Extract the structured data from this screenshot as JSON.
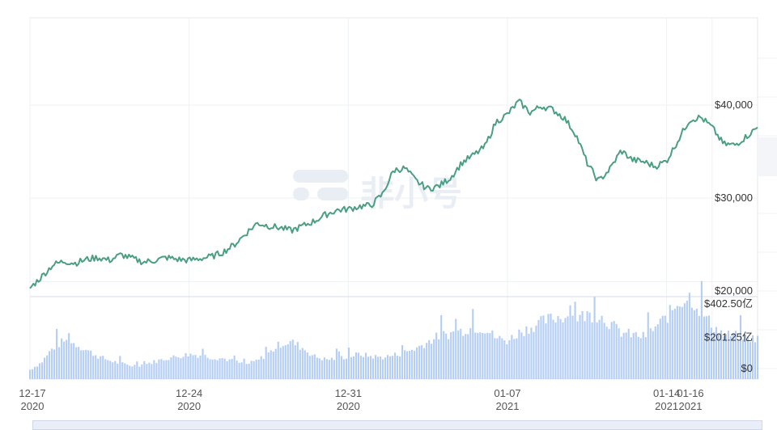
{
  "chart_data": {
    "type": "line",
    "x_ticks": [
      {
        "day": "12-17",
        "year": "2020",
        "t": 0
      },
      {
        "day": "12-24",
        "year": "2020",
        "t": 7
      },
      {
        "day": "12-31",
        "year": "2020",
        "t": 14
      },
      {
        "day": "01-07",
        "year": "2021",
        "t": 21
      },
      {
        "day": "01-14",
        "year": "2021",
        "t": 28
      },
      {
        "day": "01-16",
        "year": "2021",
        "t": 30
      }
    ],
    "price": {
      "y_ticks": [
        "$20,000",
        "$30,000",
        "$40,000"
      ],
      "y_tick_values": [
        20000,
        30000,
        40000
      ],
      "ylim": [
        20000,
        42000
      ],
      "color": "#4a9e84",
      "points": [
        [
          0,
          20300
        ],
        [
          0.5,
          21500
        ],
        [
          1,
          22800
        ],
        [
          1.5,
          23200
        ],
        [
          2,
          23000
        ],
        [
          2.5,
          23400
        ],
        [
          3,
          23600
        ],
        [
          3.5,
          23300
        ],
        [
          4,
          23900
        ],
        [
          4.5,
          23500
        ],
        [
          5,
          23100
        ],
        [
          5.5,
          23300
        ],
        [
          6,
          23600
        ],
        [
          6.5,
          23400
        ],
        [
          7,
          23300
        ],
        [
          7.5,
          23500
        ],
        [
          8,
          23700
        ],
        [
          8.5,
          24200
        ],
        [
          9,
          25000
        ],
        [
          9.5,
          26200
        ],
        [
          10,
          27300
        ],
        [
          10.5,
          27000
        ],
        [
          11,
          26800
        ],
        [
          11.5,
          26500
        ],
        [
          12,
          27000
        ],
        [
          12.5,
          27500
        ],
        [
          13,
          28200
        ],
        [
          13.5,
          28700
        ],
        [
          14,
          28800
        ],
        [
          14.5,
          29100
        ],
        [
          15,
          29200
        ],
        [
          15.5,
          30400
        ],
        [
          16,
          33000
        ],
        [
          16.5,
          33200
        ],
        [
          17,
          31800
        ],
        [
          17.5,
          31000
        ],
        [
          18,
          31300
        ],
        [
          18.5,
          32200
        ],
        [
          19,
          33800
        ],
        [
          19.5,
          34600
        ],
        [
          20,
          35500
        ],
        [
          20.5,
          38200
        ],
        [
          21,
          39000
        ],
        [
          21.5,
          40400
        ],
        [
          22,
          39200
        ],
        [
          22.5,
          39900
        ],
        [
          23,
          39500
        ],
        [
          23.5,
          38600
        ],
        [
          24,
          36900
        ],
        [
          24.5,
          33800
        ],
        [
          25,
          31800
        ],
        [
          25.5,
          33100
        ],
        [
          26,
          35100
        ],
        [
          26.5,
          34100
        ],
        [
          27,
          33900
        ],
        [
          27.5,
          33400
        ],
        [
          28,
          34000
        ],
        [
          28.5,
          36200
        ],
        [
          29,
          38400
        ],
        [
          29.5,
          38700
        ],
        [
          30,
          37600
        ],
        [
          30.5,
          35800
        ],
        [
          31,
          35700
        ],
        [
          31.5,
          36600
        ],
        [
          32,
          37600
        ]
      ]
    },
    "volume": {
      "y_ticks": [
        "$0",
        "$201.25亿",
        "$402.50亿"
      ],
      "y_tick_values": [
        0,
        201.25,
        402.5
      ],
      "ylim": [
        0,
        402.5
      ],
      "unit": "亿",
      "color": "#b3cdf4",
      "points": [
        [
          0,
          45
        ],
        [
          0.5,
          80
        ],
        [
          1,
          150
        ],
        [
          1.5,
          185
        ],
        [
          2,
          170
        ],
        [
          2.5,
          140
        ],
        [
          3,
          110
        ],
        [
          3.5,
          90
        ],
        [
          4,
          75
        ],
        [
          4.5,
          65
        ],
        [
          5,
          70
        ],
        [
          5.5,
          85
        ],
        [
          6,
          100
        ],
        [
          6.5,
          110
        ],
        [
          7,
          120
        ],
        [
          7.5,
          115
        ],
        [
          8,
          105
        ],
        [
          8.5,
          100
        ],
        [
          9,
          85
        ],
        [
          9.5,
          70
        ],
        [
          10,
          90
        ],
        [
          10.5,
          125
        ],
        [
          11,
          170
        ],
        [
          11.5,
          180
        ],
        [
          12,
          150
        ],
        [
          12.5,
          110
        ],
        [
          13,
          95
        ],
        [
          13.5,
          100
        ],
        [
          14,
          110
        ],
        [
          14.5,
          120
        ],
        [
          15,
          110
        ],
        [
          15.5,
          105
        ],
        [
          16,
          115
        ],
        [
          16.5,
          130
        ],
        [
          17,
          150
        ],
        [
          17.5,
          180
        ],
        [
          18,
          210
        ],
        [
          18.5,
          220
        ],
        [
          19,
          235
        ],
        [
          19.5,
          250
        ],
        [
          20,
          245
        ],
        [
          20.5,
          200
        ],
        [
          21,
          185
        ],
        [
          21.5,
          225
        ],
        [
          22,
          250
        ],
        [
          22.5,
          275
        ],
        [
          23,
          295
        ],
        [
          23.5,
          305
        ],
        [
          24,
          295
        ],
        [
          24.5,
          310
        ],
        [
          25,
          310
        ],
        [
          25.5,
          270
        ],
        [
          26,
          225
        ],
        [
          26.5,
          215
        ],
        [
          27,
          205
        ],
        [
          27.5,
          250
        ],
        [
          28,
          300
        ],
        [
          28.5,
          370
        ],
        [
          29,
          400
        ],
        [
          29.5,
          330
        ],
        [
          30,
          260
        ],
        [
          30.5,
          215
        ],
        [
          31,
          210
        ],
        [
          31.5,
          200
        ],
        [
          32,
          195
        ]
      ]
    },
    "legend": "none",
    "grid": true
  },
  "watermark": "非小号"
}
